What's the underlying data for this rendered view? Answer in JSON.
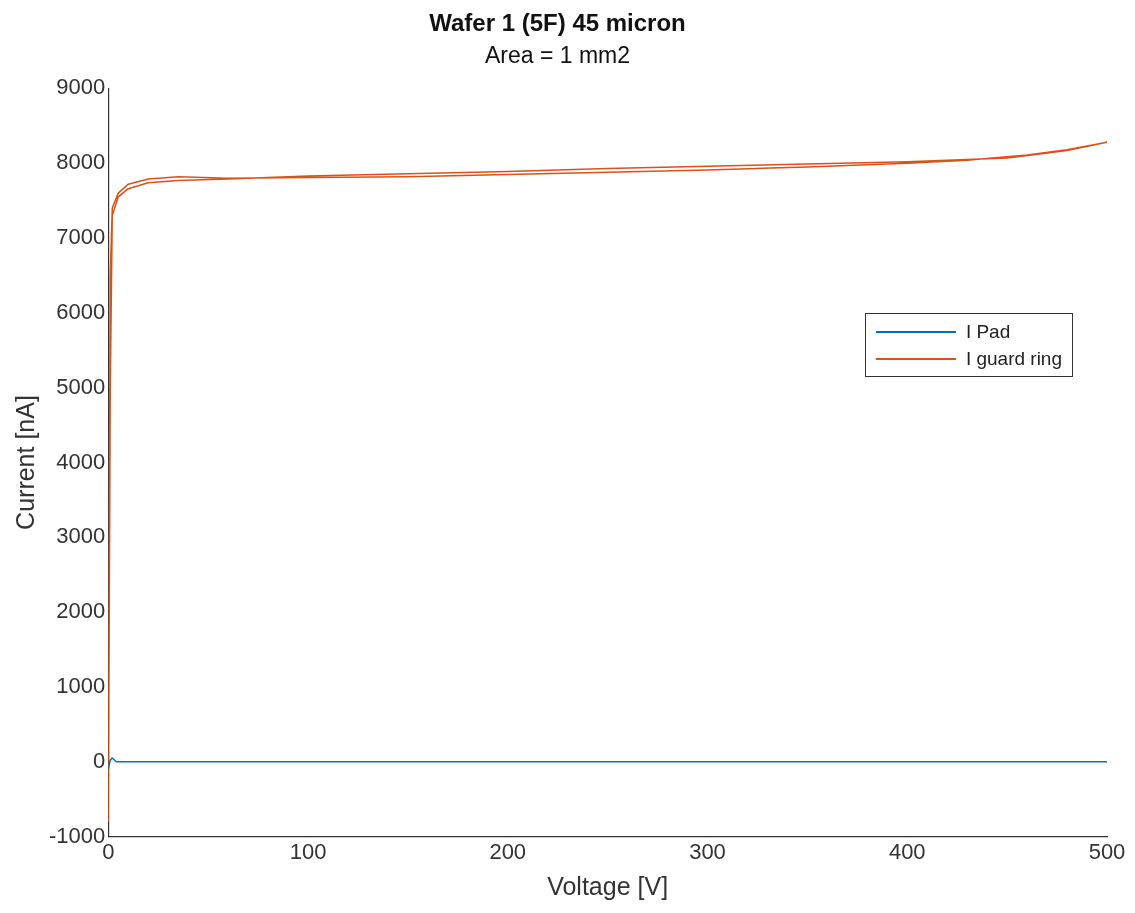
{
  "chart_data": {
    "type": "line",
    "title": "Wafer 1 (5F) 45 micron",
    "subtitle": "Area = 1 mm2",
    "xlabel": "Voltage [V]",
    "ylabel": "Current [nA]",
    "xlim": [
      0,
      500
    ],
    "xticks": [
      0,
      100,
      200,
      300,
      400,
      500
    ],
    "ylim": [
      -1000,
      9000
    ],
    "yticks": [
      -1000,
      0,
      1000,
      2000,
      3000,
      4000,
      5000,
      6000,
      7000,
      8000,
      9000
    ],
    "grid": false,
    "legend": "right",
    "marker": "none",
    "line_style": "solid",
    "series": [
      {
        "name": "I Pad",
        "color": "#0072bd",
        "x": [
          0,
          1,
          2,
          4,
          100,
          200,
          300,
          400,
          500
        ],
        "values": [
          -100,
          20,
          50,
          0,
          0,
          0,
          0,
          0,
          0
        ]
      },
      {
        "name": "I guard ring",
        "color": "#d95319",
        "x": [
          0,
          0.5,
          1,
          2,
          5,
          10,
          20,
          35,
          60,
          100,
          150,
          200,
          250,
          300,
          350,
          400,
          430,
          460,
          480,
          500,
          480,
          450,
          400,
          350,
          300,
          250,
          200,
          150,
          100,
          60,
          35,
          20,
          10,
          5,
          2,
          1,
          0.5,
          0
        ],
        "values": [
          -800,
          3000,
          6500,
          7400,
          7600,
          7720,
          7790,
          7820,
          7800,
          7810,
          7820,
          7850,
          7880,
          7910,
          7950,
          8000,
          8040,
          8110,
          8180,
          8280,
          8170,
          8070,
          8020,
          7990,
          7960,
          7930,
          7890,
          7860,
          7830,
          7790,
          7770,
          7740,
          7660,
          7550,
          7300,
          5000,
          2000,
          0
        ]
      }
    ]
  }
}
